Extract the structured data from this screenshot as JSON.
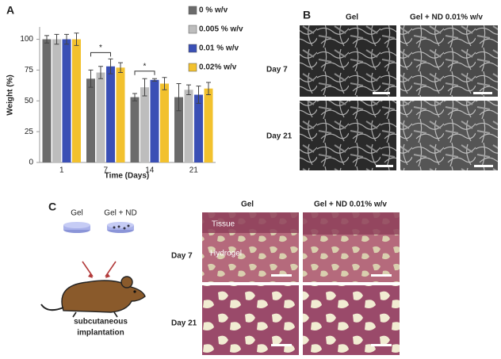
{
  "chart_data": {
    "type": "bar",
    "panel": "A",
    "xlabel": "Time (Days)",
    "ylabel": "Weight  (%)",
    "categories": [
      "1",
      "7",
      "14",
      "21"
    ],
    "series": [
      {
        "name": "0 % w/v",
        "color": "#6b6b6b",
        "values": [
          100,
          68,
          53,
          53
        ],
        "errors": [
          3,
          7,
          3,
          11
        ]
      },
      {
        "name": "0.005 % w/v",
        "color": "#bdbdbd",
        "values": [
          100,
          73,
          61,
          59
        ],
        "errors": [
          4,
          5,
          7,
          4
        ]
      },
      {
        "name": "0.01 % w/v",
        "color": "#3a4fb5",
        "values": [
          100,
          78,
          67,
          55
        ],
        "errors": [
          4,
          6,
          1,
          7
        ]
      },
      {
        "name": "0.02% w/v",
        "color": "#f2c12e",
        "values": [
          100,
          77,
          64,
          60
        ],
        "errors": [
          5,
          4,
          5,
          5
        ]
      }
    ],
    "annotations": [
      "*",
      "*"
    ],
    "ylim": [
      0,
      110
    ],
    "yticks": [
      0,
      25,
      50,
      75,
      100
    ],
    "legend": "right"
  },
  "panel_b": {
    "letter": "B",
    "columns": [
      "Gel",
      "Gel + ND 0.01% w/v"
    ],
    "rows": [
      "Day 7",
      "Day 21"
    ]
  },
  "panel_c": {
    "letter": "C",
    "gel": "Gel",
    "gel_nd": "Gel + ND",
    "caption": [
      "subcutaneous",
      "implantation"
    ],
    "columns": [
      "Gel",
      "Gel + ND 0.01% w/v"
    ],
    "rows": [
      "Day 7",
      "Day 21"
    ],
    "overlay": [
      "Tissue",
      "Hydrogel"
    ]
  }
}
